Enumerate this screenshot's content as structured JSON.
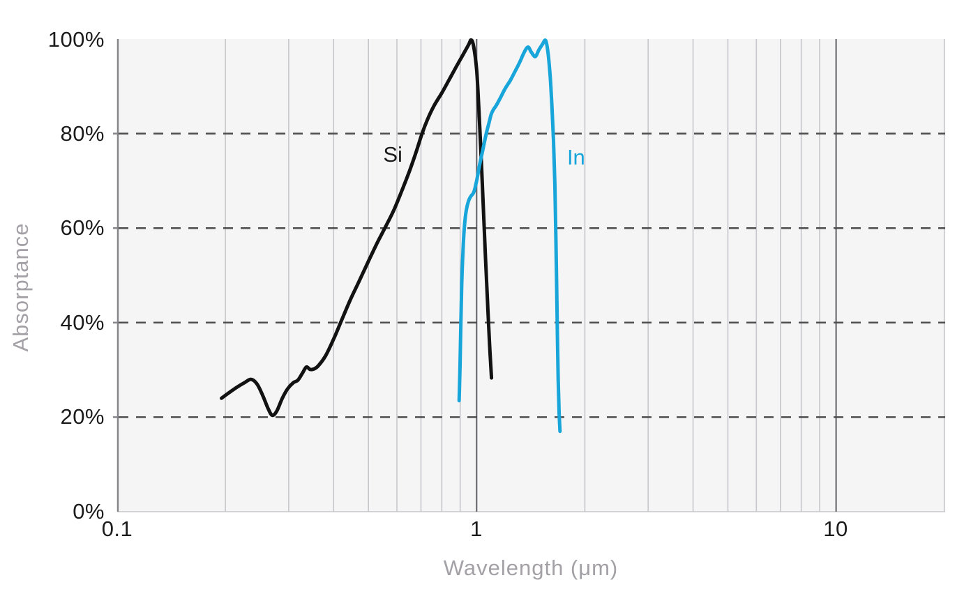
{
  "chart_data": {
    "type": "line",
    "title": "",
    "xlabel": "Wavelength (μm)",
    "ylabel": "Absorptance",
    "x_scale": "log",
    "xlim": [
      0.1,
      20
    ],
    "ylim": [
      0,
      100
    ],
    "grid": {
      "vertical_solid_log_minors": true,
      "vertical_dark_decades": [
        1,
        10
      ],
      "horizontal_dashed_at_percent": [
        20,
        40,
        60,
        80
      ]
    },
    "x_ticks": [
      {
        "value": 0.1,
        "label": "0.1"
      },
      {
        "value": 1,
        "label": "1"
      },
      {
        "value": 10,
        "label": "10"
      }
    ],
    "y_ticks": [
      {
        "value": 100,
        "label": "100%"
      },
      {
        "value": 80,
        "label": "80%"
      },
      {
        "value": 60,
        "label": "60%"
      },
      {
        "value": 40,
        "label": "40%"
      },
      {
        "value": 20,
        "label": "20%"
      },
      {
        "value": 0,
        "label": "0%"
      }
    ],
    "colors": {
      "si_line": "#121212",
      "in_line": "#18a6da",
      "plot_background": "#f5f5f6",
      "minor_grid": "#c7c7cb",
      "decade_grid": "#606066",
      "axis_line": "#85858a",
      "dashed_line": "#4d4d4d",
      "tick_text": "#1b1b1b",
      "axis_title_text": "#a3a0a6"
    },
    "series": [
      {
        "name": "Si",
        "color": "#121212",
        "points": [
          [
            0.195,
            24.0
          ],
          [
            0.205,
            25.2
          ],
          [
            0.215,
            26.3
          ],
          [
            0.226,
            27.3
          ],
          [
            0.236,
            28.0
          ],
          [
            0.245,
            27.0
          ],
          [
            0.254,
            24.6
          ],
          [
            0.263,
            21.8
          ],
          [
            0.27,
            20.4
          ],
          [
            0.278,
            21.3
          ],
          [
            0.288,
            24.0
          ],
          [
            0.298,
            26.0
          ],
          [
            0.309,
            27.3
          ],
          [
            0.318,
            27.8
          ],
          [
            0.327,
            29.2
          ],
          [
            0.336,
            30.6
          ],
          [
            0.344,
            30.1
          ],
          [
            0.353,
            30.2
          ],
          [
            0.363,
            30.9
          ],
          [
            0.38,
            33.0
          ],
          [
            0.4,
            36.5
          ],
          [
            0.421,
            40.5
          ],
          [
            0.445,
            44.8
          ],
          [
            0.47,
            48.6
          ],
          [
            0.5,
            53.0
          ],
          [
            0.53,
            57.0
          ],
          [
            0.56,
            60.5
          ],
          [
            0.59,
            64.0
          ],
          [
            0.62,
            68.0
          ],
          [
            0.65,
            72.0
          ],
          [
            0.68,
            76.3
          ],
          [
            0.705,
            80.0
          ],
          [
            0.73,
            83.0
          ],
          [
            0.76,
            85.8
          ],
          [
            0.8,
            88.6
          ],
          [
            0.84,
            91.5
          ],
          [
            0.88,
            94.3
          ],
          [
            0.92,
            96.9
          ],
          [
            0.95,
            98.8
          ],
          [
            0.965,
            99.8
          ],
          [
            0.98,
            98.6
          ],
          [
            1.0,
            93.5
          ],
          [
            1.013,
            86.0
          ],
          [
            1.028,
            76.0
          ],
          [
            1.043,
            65.0
          ],
          [
            1.058,
            54.0
          ],
          [
            1.072,
            44.5
          ],
          [
            1.086,
            35.5
          ],
          [
            1.1,
            28.3
          ]
        ]
      },
      {
        "name": "In",
        "color": "#18a6da",
        "points": [
          [
            0.894,
            23.5
          ],
          [
            0.899,
            31.0
          ],
          [
            0.904,
            40.0
          ],
          [
            0.909,
            48.0
          ],
          [
            0.916,
            55.0
          ],
          [
            0.925,
            60.5
          ],
          [
            0.936,
            63.8
          ],
          [
            0.95,
            65.8
          ],
          [
            0.965,
            66.8
          ],
          [
            0.982,
            67.6
          ],
          [
            1.0,
            70.0
          ],
          [
            1.02,
            73.5
          ],
          [
            1.04,
            76.5
          ],
          [
            1.062,
            79.8
          ],
          [
            1.082,
            82.2
          ],
          [
            1.097,
            84.0
          ],
          [
            1.112,
            85.0
          ],
          [
            1.135,
            86.0
          ],
          [
            1.163,
            87.5
          ],
          [
            1.2,
            89.5
          ],
          [
            1.24,
            91.2
          ],
          [
            1.28,
            93.2
          ],
          [
            1.32,
            95.2
          ],
          [
            1.356,
            97.2
          ],
          [
            1.39,
            98.3
          ],
          [
            1.42,
            97.2
          ],
          [
            1.456,
            96.3
          ],
          [
            1.49,
            97.7
          ],
          [
            1.522,
            98.8
          ],
          [
            1.556,
            99.7
          ],
          [
            1.58,
            97.0
          ],
          [
            1.602,
            92.0
          ],
          [
            1.62,
            85.5
          ],
          [
            1.636,
            78.5
          ],
          [
            1.65,
            69.5
          ],
          [
            1.661,
            58.0
          ],
          [
            1.67,
            47.0
          ],
          [
            1.678,
            37.0
          ],
          [
            1.686,
            28.0
          ],
          [
            1.696,
            21.0
          ],
          [
            1.706,
            17.0
          ]
        ]
      }
    ],
    "annotations": [
      {
        "text": "Si",
        "x": 0.585,
        "y": 75.5,
        "color": "#1a1a1a"
      },
      {
        "text": "In",
        "x": 1.9,
        "y": 75.0,
        "color": "#18a6da"
      }
    ]
  }
}
